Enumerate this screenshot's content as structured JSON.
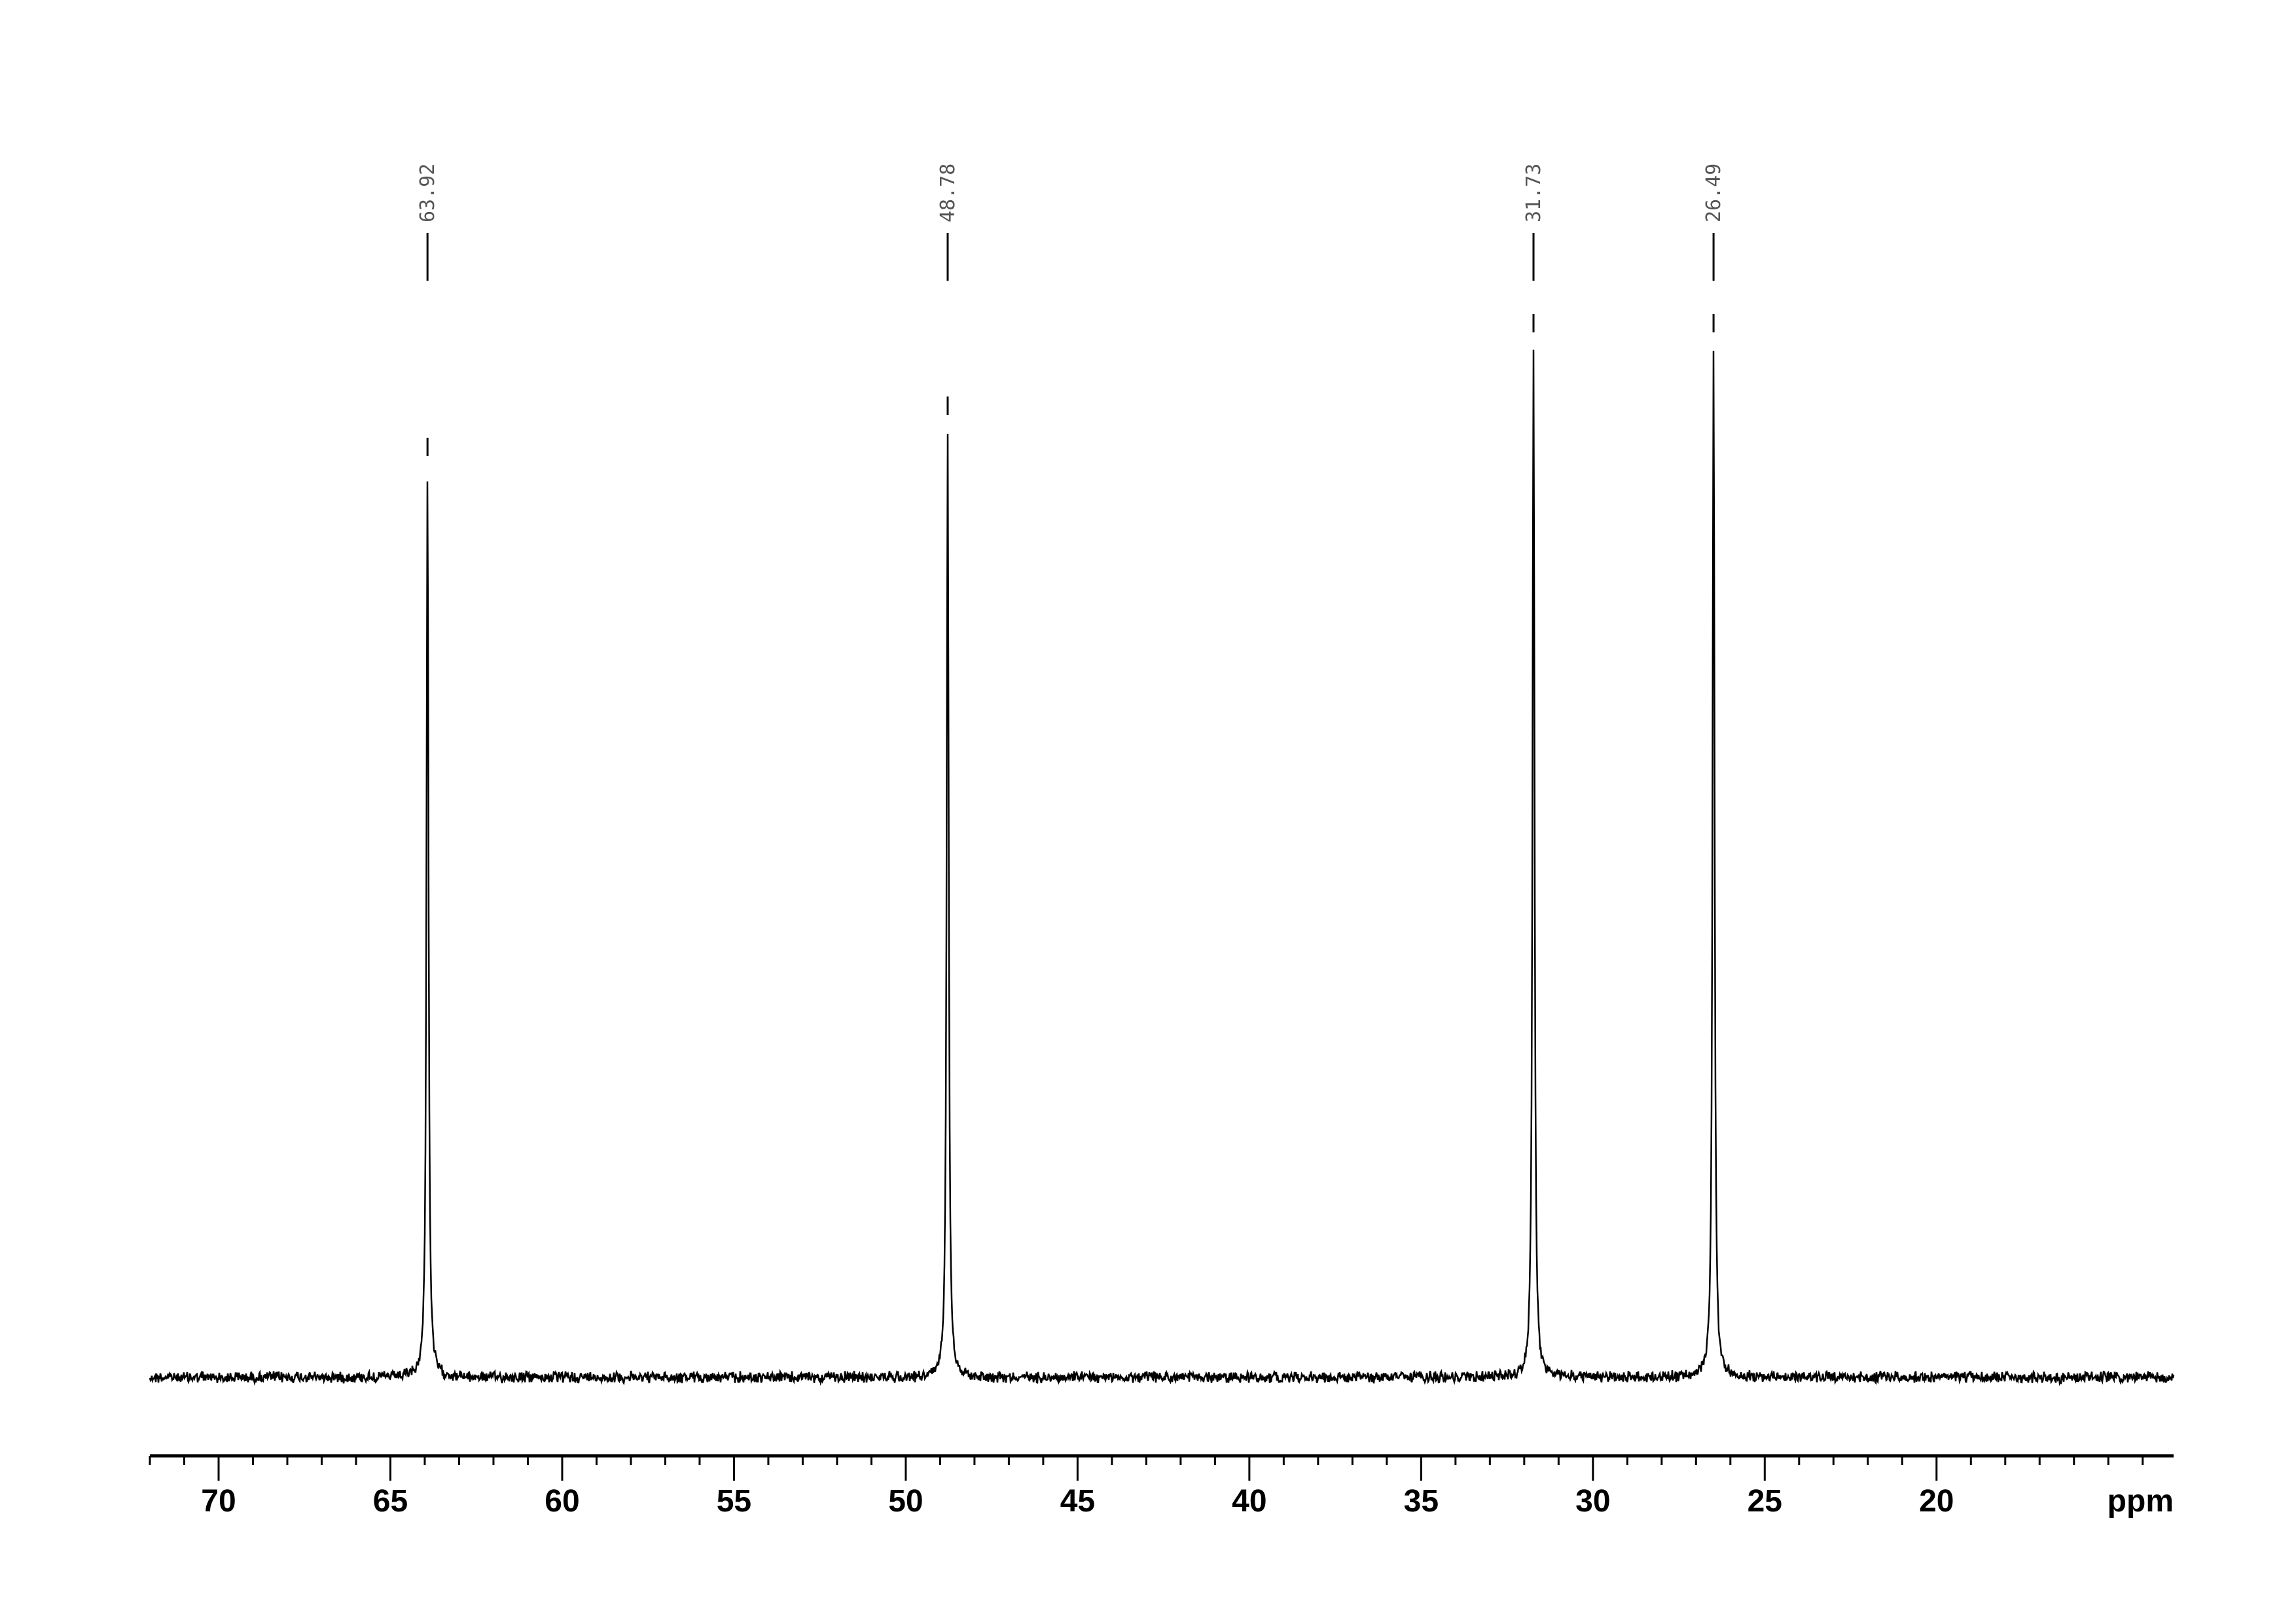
{
  "chart_data": {
    "type": "line",
    "title": "",
    "xlabel": "ppm",
    "ylabel": "",
    "xlim": [
      72.0,
      13.1
    ],
    "x_reversed": true,
    "grid": false,
    "x_ticks": [
      70,
      65,
      60,
      55,
      50,
      45,
      40,
      35,
      30,
      25,
      20
    ],
    "x_tick_labels": [
      "70",
      "65",
      "60",
      "55",
      "50",
      "45",
      "40",
      "35",
      "30",
      "25",
      "20"
    ],
    "minor_tick_step": 1,
    "peaks": [
      {
        "ppm": 63.92,
        "label": "63.92",
        "relative_intensity": 0.88
      },
      {
        "ppm": 48.78,
        "label": "48.78",
        "relative_intensity": 0.92
      },
      {
        "ppm": 31.73,
        "label": "31.73",
        "relative_intensity": 1.0
      },
      {
        "ppm": 26.49,
        "label": "26.49",
        "relative_intensity": 1.0
      }
    ],
    "line_color": "#000000"
  }
}
